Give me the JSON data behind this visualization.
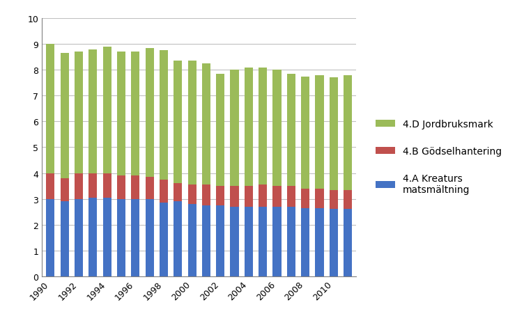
{
  "years": [
    1990,
    1991,
    1992,
    1993,
    1994,
    1995,
    1996,
    1997,
    1998,
    1999,
    2000,
    2001,
    2002,
    2003,
    2004,
    2005,
    2006,
    2007,
    2008,
    2009,
    2010,
    2011
  ],
  "kreaturs": [
    3.0,
    2.9,
    3.0,
    3.05,
    3.05,
    3.0,
    3.0,
    3.0,
    2.85,
    2.9,
    2.8,
    2.75,
    2.75,
    2.7,
    2.7,
    2.7,
    2.7,
    2.7,
    2.65,
    2.65,
    2.6,
    2.6
  ],
  "godsel": [
    1.0,
    0.9,
    1.0,
    0.95,
    0.95,
    0.9,
    0.9,
    0.85,
    0.9,
    0.7,
    0.75,
    0.8,
    0.75,
    0.8,
    0.8,
    0.85,
    0.8,
    0.8,
    0.75,
    0.75,
    0.75,
    0.75
  ],
  "jordbruk": [
    5.0,
    4.85,
    4.7,
    4.8,
    4.9,
    4.8,
    4.8,
    5.0,
    5.0,
    4.75,
    4.8,
    4.7,
    4.35,
    4.5,
    4.6,
    4.55,
    4.5,
    4.35,
    4.35,
    4.4,
    4.35,
    4.45
  ],
  "color_kreaturs": "#4472C4",
  "color_godsel": "#C0504D",
  "color_jordbruk": "#9BBB59",
  "ylim": [
    0,
    10
  ],
  "yticks": [
    0,
    1,
    2,
    3,
    4,
    5,
    6,
    7,
    8,
    9,
    10
  ],
  "legend_labels": [
    "4.D Jordbruksmark",
    "4.B Gödselhantering",
    "4.A Kreaturs\nmatsmältning"
  ],
  "background_color": "#ffffff",
  "bar_width": 0.6
}
